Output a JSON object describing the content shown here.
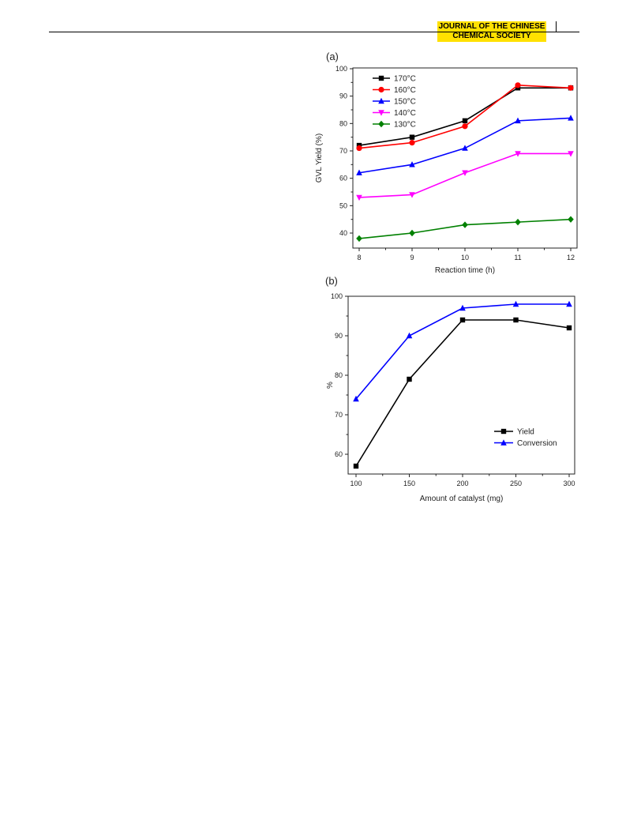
{
  "header": {
    "journal_line1": "JOURNAL OF THE CHINESE",
    "journal_line2": "CHEMICAL SOCIETY",
    "accent_color": "#ffe100"
  },
  "chart_data": [
    {
      "panel_label": "(a)",
      "type": "line",
      "xlabel": "Reaction time (h)",
      "ylabel": "GVL Yield (%)",
      "x": [
        8,
        9,
        10,
        11,
        12
      ],
      "xlim": [
        8,
        12
      ],
      "ylim": [
        35,
        100
      ],
      "xticks": [
        "8",
        "9",
        "10",
        "11",
        "12"
      ],
      "yticks": [
        "40",
        "50",
        "60",
        "70",
        "80",
        "90",
        "100"
      ],
      "legend_position": "top-left",
      "grid": false,
      "series": [
        {
          "name": "170°C",
          "color": "#000000",
          "marker": "square",
          "values": [
            72,
            75,
            81,
            93,
            93
          ]
        },
        {
          "name": "160°C",
          "color": "#ff0000",
          "marker": "circle",
          "values": [
            71,
            73,
            79,
            94,
            93
          ]
        },
        {
          "name": "150°C",
          "color": "#0000ff",
          "marker": "triangle-up",
          "values": [
            62,
            65,
            71,
            81,
            82
          ]
        },
        {
          "name": "140°C",
          "color": "#ff00ff",
          "marker": "triangle-down",
          "values": [
            53,
            54,
            62,
            69,
            69
          ]
        },
        {
          "name": "130°C",
          "color": "#008000",
          "marker": "diamond",
          "values": [
            38,
            40,
            43,
            44,
            45
          ]
        }
      ]
    },
    {
      "panel_label": "(b)",
      "type": "line",
      "xlabel": "Amount of catalyst (mg)",
      "ylabel": "%",
      "x": [
        100,
        150,
        200,
        250,
        300
      ],
      "xlim": [
        90,
        305
      ],
      "ylim": [
        55,
        100
      ],
      "xticks": [
        "100",
        "150",
        "200",
        "250",
        "300"
      ],
      "yticks": [
        "60",
        "70",
        "80",
        "90",
        "100"
      ],
      "legend_position": "bottom-right",
      "grid": false,
      "series": [
        {
          "name": "Yield",
          "color": "#000000",
          "marker": "square",
          "values": [
            57,
            79,
            94,
            94,
            92
          ]
        },
        {
          "name": "Conversion",
          "color": "#0000ff",
          "marker": "triangle-up",
          "values": [
            74,
            90,
            97,
            98,
            98
          ]
        }
      ]
    }
  ]
}
